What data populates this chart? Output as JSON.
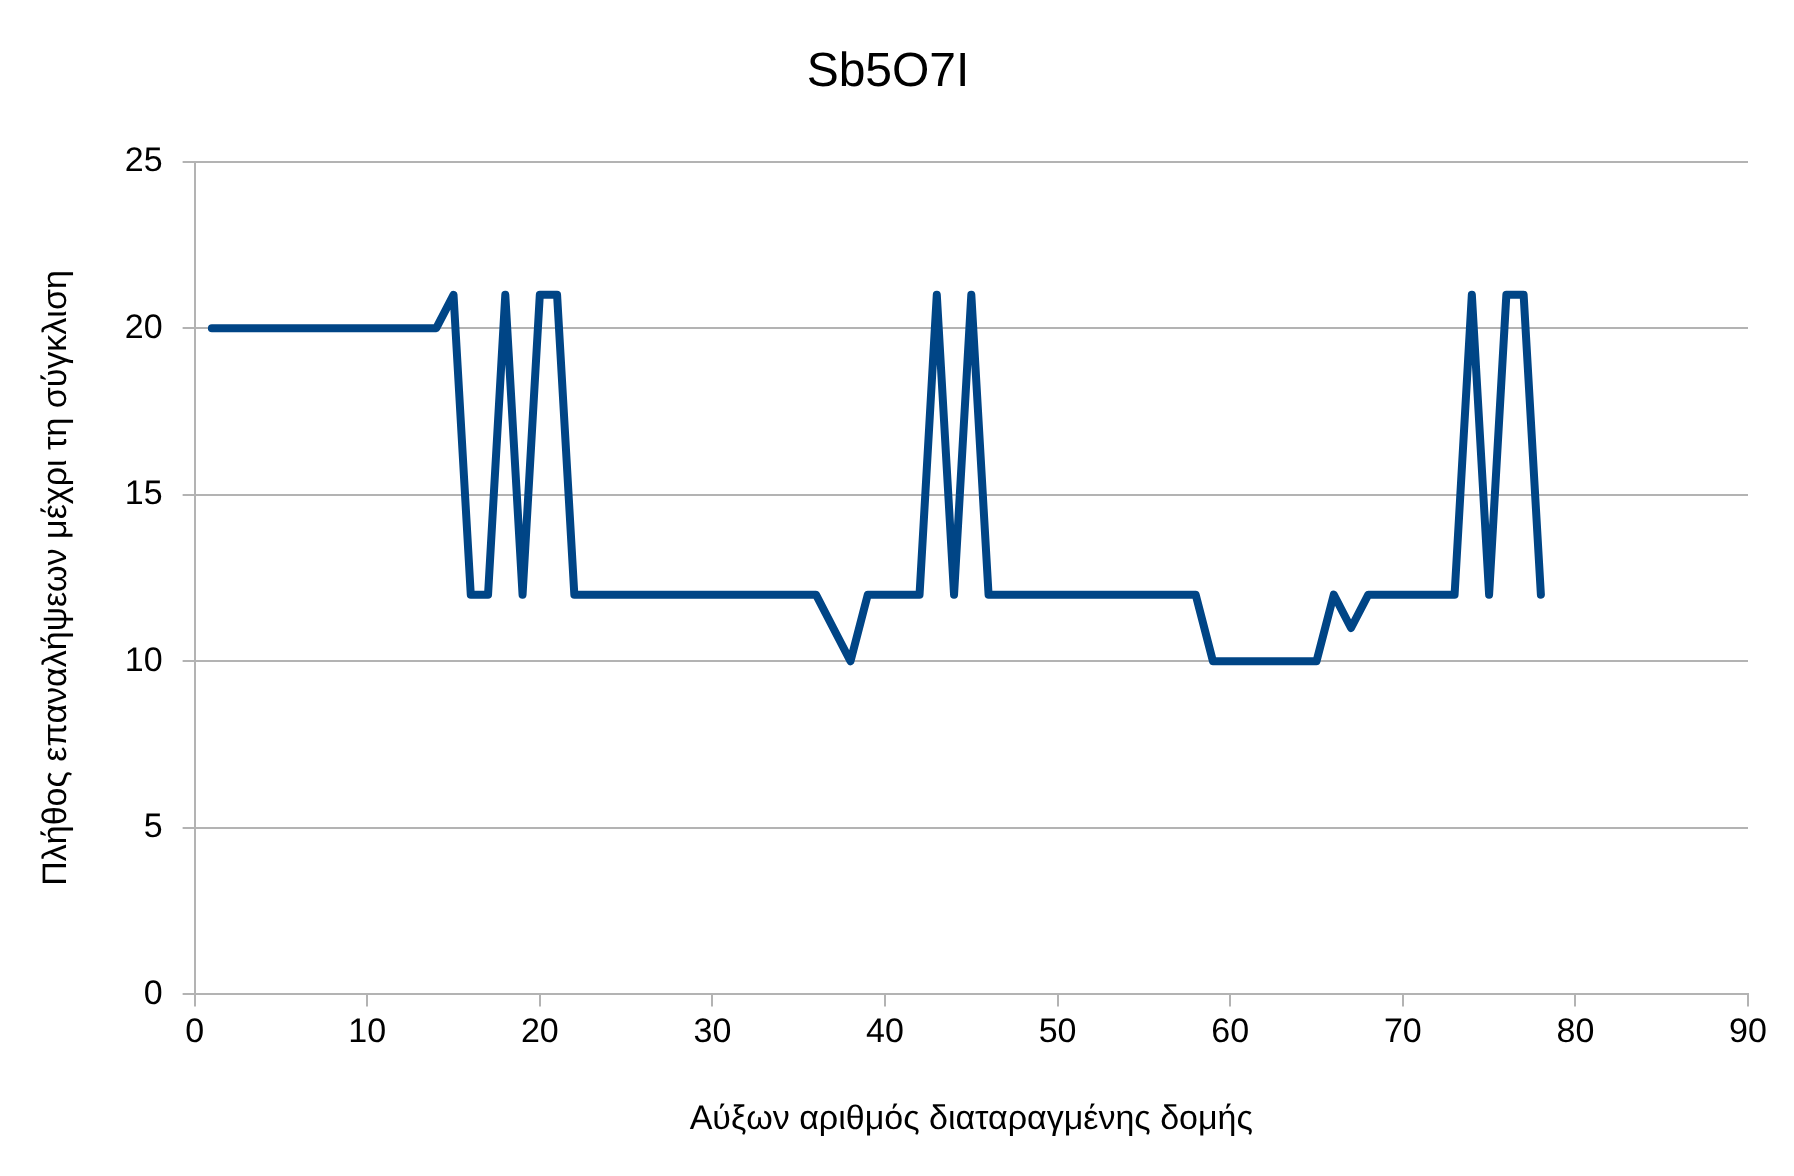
{
  "chart_data": {
    "type": "line",
    "title": "Sb5O7I",
    "xlabel": "Αύξων αριθμός διαταραγμένης δομής",
    "ylabel": "Πλήθος επαναλήψεων μέχρι τη σύγκλιση",
    "x": [
      1,
      2,
      3,
      4,
      5,
      6,
      7,
      8,
      9,
      10,
      11,
      12,
      13,
      14,
      15,
      16,
      17,
      18,
      19,
      20,
      21,
      22,
      23,
      24,
      25,
      26,
      27,
      28,
      29,
      30,
      31,
      32,
      33,
      34,
      35,
      36,
      37,
      38,
      39,
      40,
      41,
      42,
      43,
      44,
      45,
      46,
      47,
      48,
      49,
      50,
      51,
      52,
      53,
      54,
      55,
      56,
      57,
      58,
      59,
      60,
      61,
      62,
      63,
      64,
      65,
      66,
      67,
      68,
      69,
      70,
      71,
      72,
      73,
      74,
      75,
      76,
      77,
      78
    ],
    "series": [
      {
        "color": "#004586",
        "values": [
          20,
          20,
          20,
          20,
          20,
          20,
          20,
          20,
          20,
          20,
          20,
          20,
          20,
          20,
          21,
          12,
          12,
          21,
          12,
          21,
          21,
          12,
          12,
          12,
          12,
          12,
          12,
          12,
          12,
          12,
          12,
          12,
          12,
          12,
          12,
          12,
          11,
          10,
          12,
          12,
          12,
          12,
          21,
          12,
          21,
          12,
          12,
          12,
          12,
          12,
          12,
          12,
          12,
          12,
          12,
          12,
          12,
          12,
          10,
          10,
          10,
          10,
          10,
          10,
          10,
          12,
          11,
          12,
          12,
          12,
          12,
          12,
          12,
          21,
          12,
          21,
          21,
          12
        ]
      }
    ],
    "xlim": [
      0,
      90
    ],
    "xticks": [
      0,
      10,
      20,
      30,
      40,
      50,
      60,
      70,
      80,
      90
    ],
    "ylim": [
      0,
      25
    ],
    "yticks": [
      0,
      5,
      10,
      15,
      20,
      25
    ],
    "grid": "y",
    "legend": false,
    "marker": "none",
    "line_style": "solid"
  }
}
